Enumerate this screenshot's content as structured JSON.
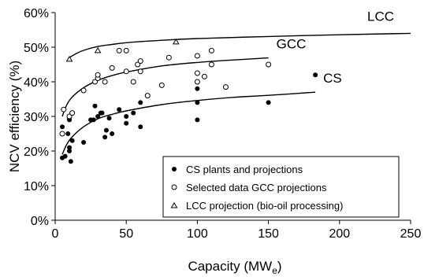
{
  "chart_data": {
    "type": "scatter",
    "xlabel": "Capacity (MW",
    "xlabel_sub": "e",
    "xlabel_close": ")",
    "ylabel": "NCV efficiency (%)",
    "xlim": [
      0,
      250
    ],
    "ylim": [
      0,
      60
    ],
    "x_ticks": [
      "0",
      "50",
      "100",
      "150",
      "200",
      "250"
    ],
    "y_ticks": [
      "0%",
      "10%",
      "20%",
      "30%",
      "40%",
      "50%",
      "60%"
    ],
    "grid": false,
    "legend_position": "bottom-right",
    "series": [
      {
        "name": "CS plants and projections",
        "marker": "filled-circle",
        "points": [
          [
            5,
            18
          ],
          [
            5,
            27
          ],
          [
            7,
            18.5
          ],
          [
            9,
            25
          ],
          [
            10,
            21
          ],
          [
            10,
            20
          ],
          [
            10,
            29
          ],
          [
            10,
            29.5
          ],
          [
            11,
            17
          ],
          [
            12,
            23
          ],
          [
            20,
            22.5
          ],
          [
            25,
            29
          ],
          [
            27,
            29
          ],
          [
            28,
            33
          ],
          [
            30,
            30
          ],
          [
            32,
            31
          ],
          [
            33,
            31
          ],
          [
            35,
            24
          ],
          [
            36,
            26
          ],
          [
            38,
            29.5
          ],
          [
            40,
            25
          ],
          [
            45,
            32
          ],
          [
            50,
            28
          ],
          [
            50,
            30
          ],
          [
            55,
            31
          ],
          [
            60,
            34
          ],
          [
            60,
            27
          ],
          [
            100,
            29
          ],
          [
            100,
            34
          ],
          [
            100,
            38
          ],
          [
            150,
            34
          ],
          [
            183,
            42
          ]
        ]
      },
      {
        "name": "Selected data GCC projections",
        "marker": "open-circle",
        "points": [
          [
            5,
            25
          ],
          [
            6,
            32
          ],
          [
            10,
            30
          ],
          [
            12,
            31
          ],
          [
            20,
            37.5
          ],
          [
            28,
            40
          ],
          [
            30,
            41
          ],
          [
            30,
            42
          ],
          [
            35,
            40
          ],
          [
            40,
            44
          ],
          [
            45,
            49
          ],
          [
            50,
            49
          ],
          [
            50,
            43
          ],
          [
            55,
            40
          ],
          [
            58,
            45
          ],
          [
            60,
            43
          ],
          [
            60,
            46
          ],
          [
            65,
            36
          ],
          [
            75,
            39
          ],
          [
            80,
            47
          ],
          [
            100,
            40
          ],
          [
            100,
            42.5
          ],
          [
            100,
            47.5
          ],
          [
            105,
            41.5
          ],
          [
            110,
            45
          ],
          [
            110,
            49
          ],
          [
            120,
            38.5
          ],
          [
            150,
            45
          ]
        ]
      },
      {
        "name": "LCC projection (bio-oil processing)",
        "marker": "open-triangle",
        "points": [
          [
            10,
            46.5
          ],
          [
            30,
            49
          ],
          [
            85,
            51.5
          ]
        ]
      }
    ],
    "trend_curves": [
      {
        "label": "LCC",
        "points": [
          [
            10,
            47
          ],
          [
            15,
            48.2
          ],
          [
            20,
            49.1
          ],
          [
            30,
            50.2
          ],
          [
            40,
            50.8
          ],
          [
            50,
            51.3
          ],
          [
            75,
            52
          ],
          [
            100,
            52.5
          ],
          [
            150,
            53.1
          ],
          [
            200,
            53.6
          ],
          [
            250,
            54
          ]
        ]
      },
      {
        "label": "GCC",
        "points": [
          [
            5,
            30
          ],
          [
            8,
            33.2
          ],
          [
            12,
            35.6
          ],
          [
            20,
            38.3
          ],
          [
            30,
            40.4
          ],
          [
            40,
            41.8
          ],
          [
            50,
            42.8
          ],
          [
            75,
            44.6
          ],
          [
            100,
            45.6
          ],
          [
            125,
            46.3
          ],
          [
            150,
            46.9
          ]
        ]
      },
      {
        "label": "CS",
        "points": [
          [
            5,
            19
          ],
          [
            8,
            21.8
          ],
          [
            12,
            24.1
          ],
          [
            20,
            27
          ],
          [
            30,
            29.3
          ],
          [
            40,
            30.6
          ],
          [
            50,
            31.6
          ],
          [
            75,
            33.4
          ],
          [
            100,
            34.6
          ],
          [
            125,
            35.5
          ],
          [
            150,
            36.1
          ],
          [
            183,
            37
          ]
        ]
      }
    ]
  }
}
